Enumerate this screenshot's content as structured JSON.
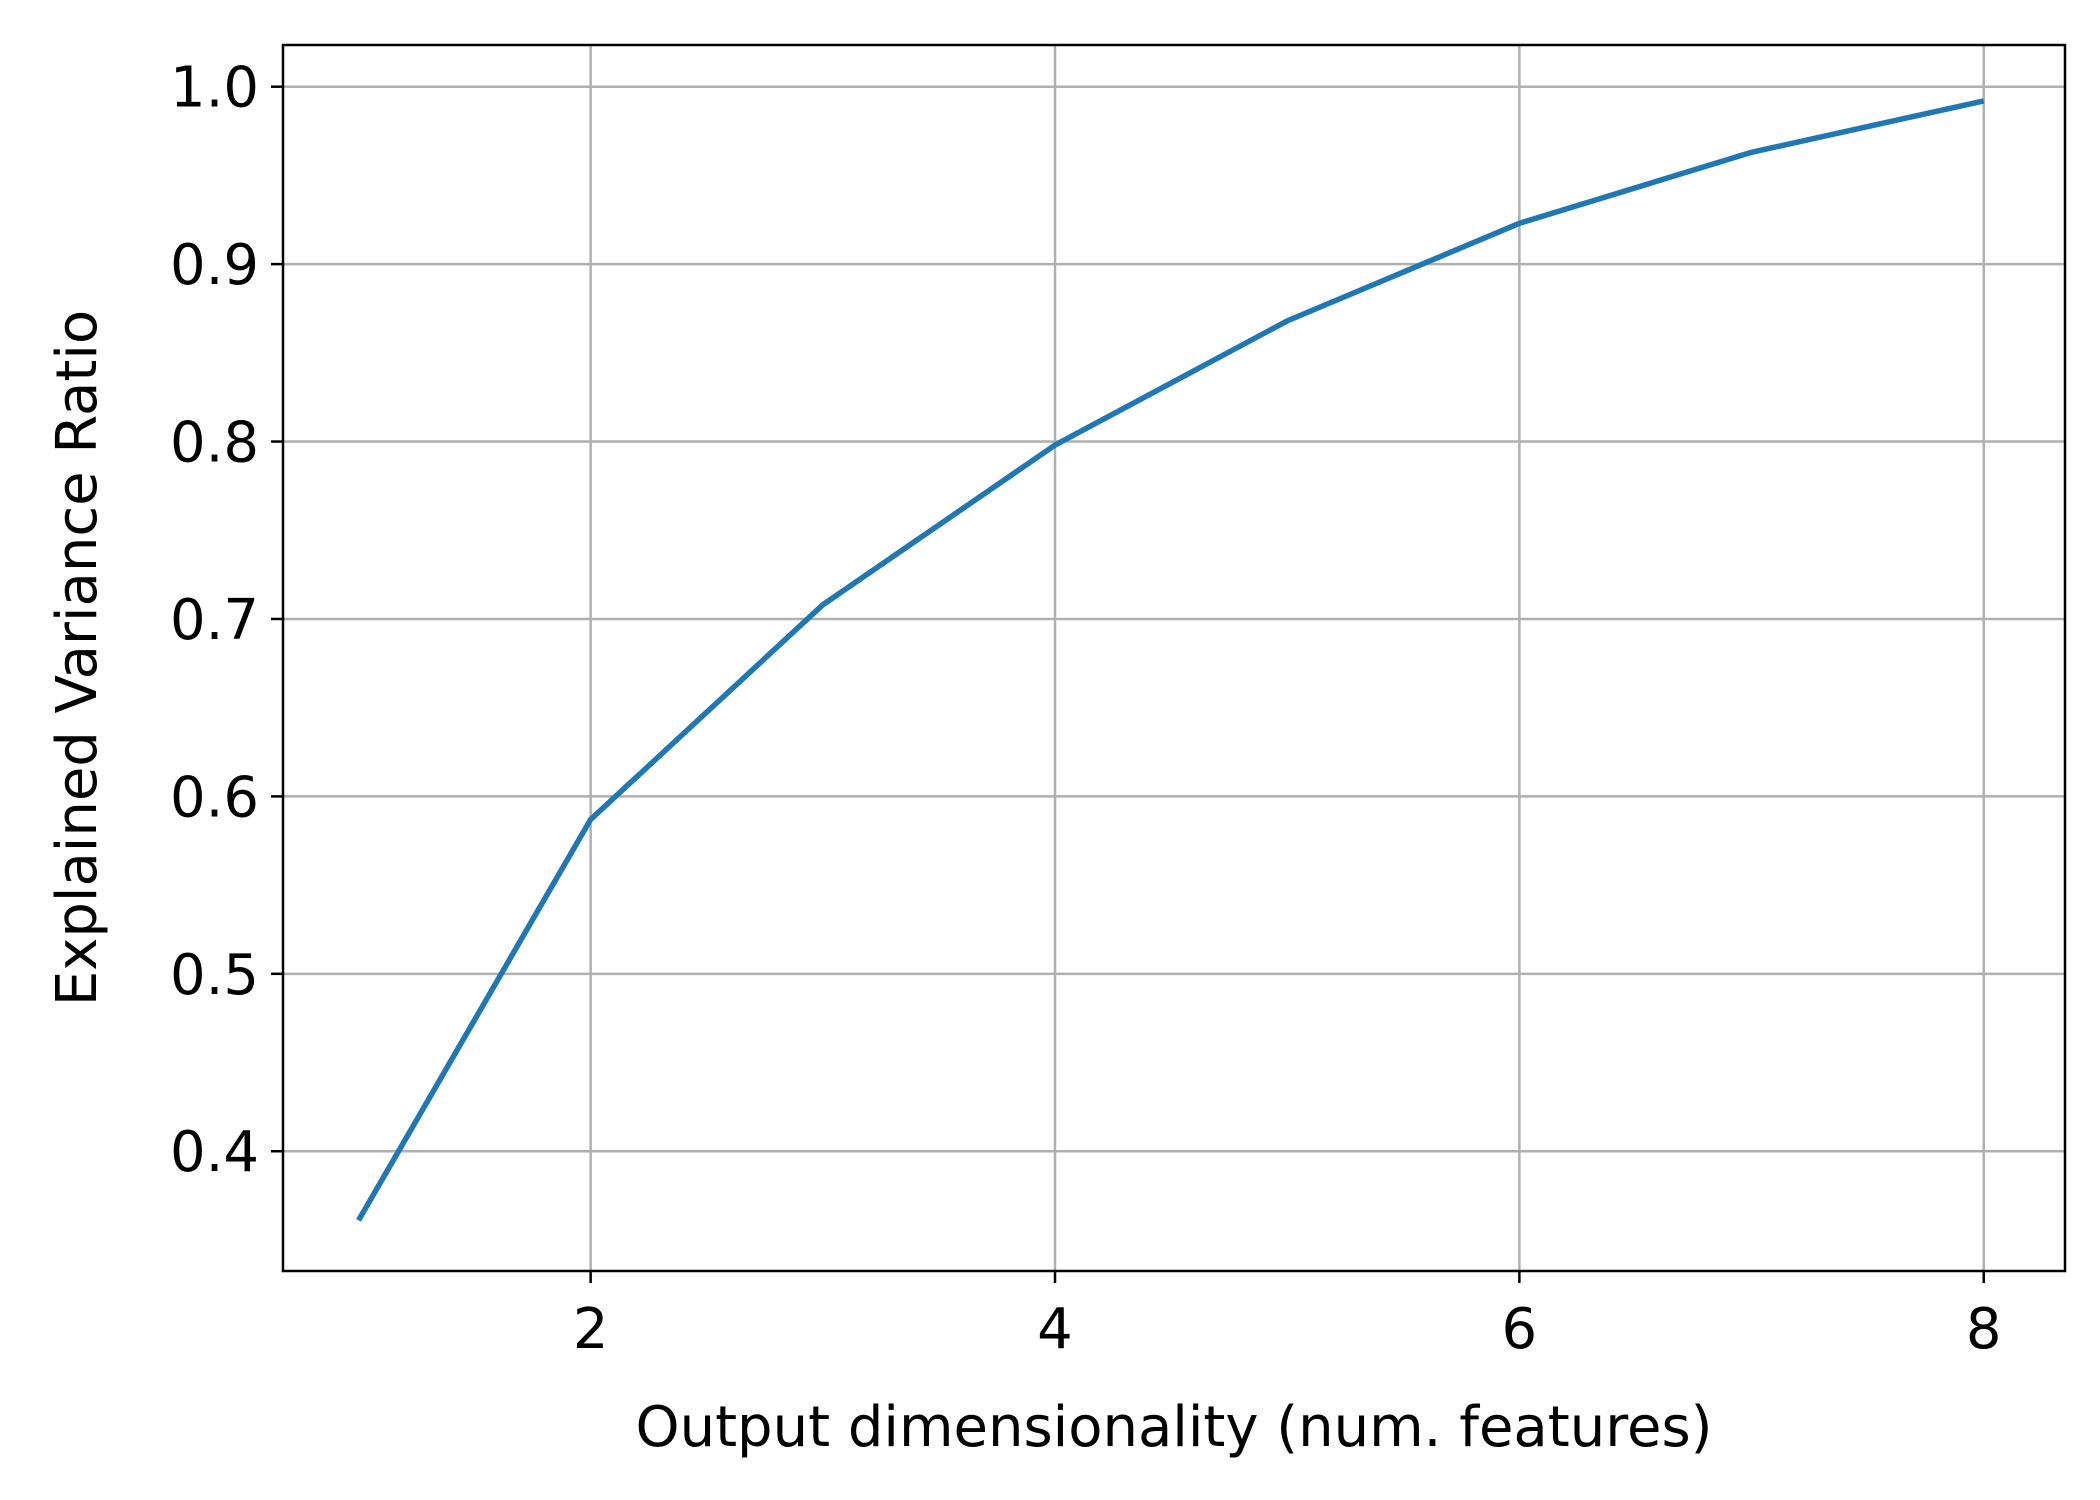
{
  "chart_data": {
    "type": "line",
    "title": "",
    "xlabel": "Output dimensionality (num. features)",
    "ylabel": "Explained Variance Ratio",
    "xlim": [
      0.675,
      8.35
    ],
    "ylim": [
      0.3325,
      1.0235
    ],
    "xticks": [
      2,
      4,
      6,
      8
    ],
    "xtick_labels": [
      "2",
      "4",
      "6",
      "8"
    ],
    "yticks": [
      0.4,
      0.5,
      0.6,
      0.7,
      0.8,
      0.9,
      1.0
    ],
    "ytick_labels": [
      "0.4",
      "0.5",
      "0.6",
      "0.7",
      "0.8",
      "0.9",
      "1.0"
    ],
    "grid": true,
    "legend": "none",
    "series": [
      {
        "color": "#1f77b4",
        "x": [
          1,
          2,
          3,
          4,
          5,
          6,
          7,
          8
        ],
        "y": [
          0.361,
          0.587,
          0.708,
          0.798,
          0.868,
          0.923,
          0.963,
          0.992
        ]
      }
    ]
  }
}
